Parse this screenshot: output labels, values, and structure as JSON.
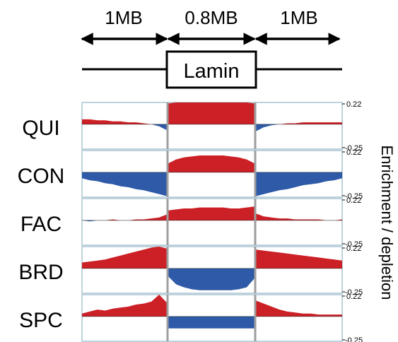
{
  "header": {
    "segments": [
      "1MB",
      "0.8MB",
      "1MB"
    ],
    "box_label": "Lamin"
  },
  "axis": {
    "side_label": "Enrichment / depletion",
    "tick_top": "0.22",
    "tick_bottom": "-0.25"
  },
  "colors": {
    "enrichment": "#cc2027",
    "depletion": "#2e5aa8",
    "panel_border": "#a9c4d2",
    "divider": "#9e9e9e",
    "baseline": "#000000"
  },
  "chart_data": {
    "type": "area",
    "ylim": [
      -0.25,
      0.22
    ],
    "xlabel": "",
    "ylabel": "Enrichment / depletion",
    "regions": [
      "1MB",
      "0.8MB",
      "1MB"
    ],
    "series": [
      {
        "name": "QUI",
        "left": [
          0.05,
          0.05,
          0.04,
          0.04,
          0.03,
          0.03,
          0.02,
          0.02,
          0.01,
          0.0,
          -0.02,
          -0.06
        ],
        "center": [
          0.21,
          0.22,
          0.22,
          0.22,
          0.22,
          0.22,
          0.22,
          0.22,
          0.22,
          0.22,
          0.22,
          0.21
        ],
        "right": [
          -0.07,
          -0.03,
          -0.01,
          0.0,
          0.01,
          0.01,
          0.02,
          0.02,
          0.02,
          0.02,
          0.02,
          0.02
        ]
      },
      {
        "name": "CON",
        "left": [
          -0.06,
          -0.08,
          -0.09,
          -0.11,
          -0.12,
          -0.14,
          -0.15,
          -0.17,
          -0.18,
          -0.2,
          -0.22,
          -0.24
        ],
        "center": [
          0.09,
          0.13,
          0.15,
          0.16,
          0.17,
          0.17,
          0.17,
          0.17,
          0.16,
          0.15,
          0.13,
          0.09
        ],
        "right": [
          -0.24,
          -0.22,
          -0.2,
          -0.18,
          -0.17,
          -0.15,
          -0.13,
          -0.12,
          -0.11,
          -0.09,
          -0.08,
          -0.06
        ]
      },
      {
        "name": "FAC",
        "left": [
          0.0,
          -0.01,
          0.0,
          0.0,
          0.01,
          0.0,
          0.0,
          0.01,
          0.01,
          0.02,
          0.03,
          0.06
        ],
        "center": [
          0.1,
          0.11,
          0.12,
          0.12,
          0.13,
          0.13,
          0.13,
          0.13,
          0.12,
          0.12,
          0.13,
          0.14
        ],
        "right": [
          0.07,
          0.04,
          0.03,
          0.02,
          0.02,
          0.01,
          0.01,
          0.01,
          0.01,
          0.0,
          0.0,
          0.01
        ]
      },
      {
        "name": "BRD",
        "left": [
          0.06,
          0.07,
          0.08,
          0.09,
          0.11,
          0.13,
          0.15,
          0.17,
          0.19,
          0.21,
          0.22,
          0.2
        ],
        "center": [
          -0.08,
          -0.16,
          -0.19,
          -0.21,
          -0.22,
          -0.22,
          -0.22,
          -0.22,
          -0.22,
          -0.21,
          -0.19,
          -0.1
        ],
        "right": [
          0.19,
          0.18,
          0.17,
          0.16,
          0.15,
          0.14,
          0.13,
          0.12,
          0.11,
          0.1,
          0.09,
          0.08
        ]
      },
      {
        "name": "SPC",
        "left": [
          0.03,
          0.05,
          0.07,
          0.06,
          0.08,
          0.09,
          0.1,
          0.12,
          0.13,
          0.15,
          0.22,
          0.14
        ],
        "center": [
          -0.12,
          -0.12,
          -0.12,
          -0.12,
          -0.12,
          -0.12,
          -0.12,
          -0.12,
          -0.12,
          -0.12,
          -0.12,
          -0.12
        ],
        "right": [
          0.16,
          0.13,
          0.1,
          0.07,
          0.05,
          0.04,
          0.03,
          0.03,
          0.02,
          0.02,
          0.02,
          0.02
        ]
      }
    ]
  }
}
